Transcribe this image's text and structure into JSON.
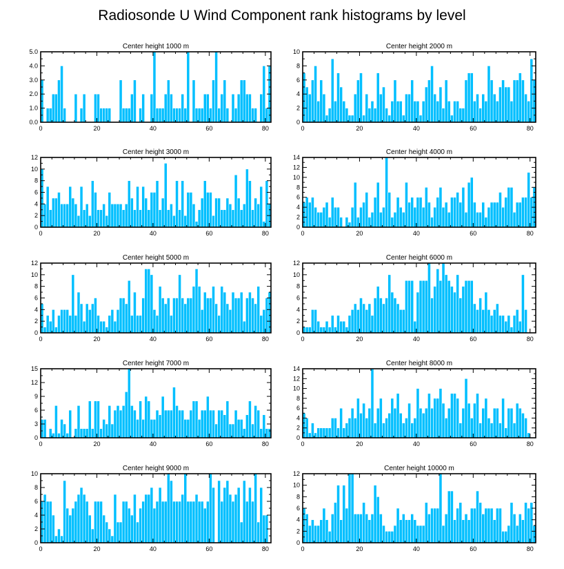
{
  "title": "Radiosonde U Wind Component rank histograms by level",
  "colors": {
    "bar": "#00bfff",
    "bar_edge": "#ffffff",
    "axis": "#000000",
    "background": "#ffffff"
  },
  "chart_data": [
    {
      "type": "bar",
      "title": "Center height 1000 m",
      "x_start": 0,
      "xlim": [
        0,
        82
      ],
      "ylim": [
        0,
        5
      ],
      "x_ticks": [
        0,
        20,
        40,
        60,
        80
      ],
      "x_tick_labels": [
        "0",
        "20",
        "40",
        "60",
        "80"
      ],
      "y_ticks": [
        0,
        1,
        2,
        3,
        4,
        5
      ],
      "y_tick_labels": [
        "0.0",
        "1.0",
        "2.0",
        "3.0",
        "4.0",
        "5.0"
      ],
      "values": [
        3,
        0,
        1,
        1,
        2,
        2,
        3,
        4,
        1,
        0,
        0,
        0,
        2,
        0,
        1,
        2,
        0,
        0,
        0,
        2,
        2,
        1,
        1,
        1,
        1,
        0,
        0,
        0,
        3,
        1,
        1,
        1,
        2,
        3,
        0,
        1,
        2,
        0,
        0,
        2,
        5,
        1,
        1,
        1,
        2,
        3,
        2,
        1,
        1,
        1,
        2,
        1,
        5,
        0,
        3,
        1,
        1,
        1,
        2,
        2,
        1,
        3,
        5,
        1,
        2,
        3,
        1,
        0,
        2,
        1,
        2,
        3,
        3,
        2,
        2,
        1,
        1,
        0,
        2,
        4,
        1,
        4,
        3
      ]
    },
    {
      "type": "bar",
      "title": "Center height 2000 m",
      "x_start": 0,
      "xlim": [
        0,
        82
      ],
      "ylim": [
        0,
        10
      ],
      "x_ticks": [
        0,
        20,
        40,
        60,
        80
      ],
      "x_tick_labels": [
        "0",
        "20",
        "40",
        "60",
        "80"
      ],
      "y_ticks": [
        0,
        2,
        4,
        6,
        8,
        10
      ],
      "y_tick_labels": [
        "0",
        "2",
        "4",
        "6",
        "8",
        "10"
      ],
      "values": [
        7,
        5,
        4,
        6,
        8,
        3,
        6,
        4,
        1,
        2,
        9,
        3,
        7,
        5,
        3,
        2,
        1,
        1,
        4,
        6,
        7,
        1,
        4,
        2,
        3,
        2,
        7,
        4,
        5,
        2,
        1,
        3,
        6,
        3,
        3,
        1,
        4,
        4,
        6,
        3,
        3,
        1,
        3,
        5,
        6,
        8,
        4,
        3,
        5,
        2,
        6,
        3,
        1,
        3,
        3,
        2,
        2,
        6,
        7,
        7,
        3,
        4,
        2,
        4,
        3,
        8,
        6,
        4,
        3,
        5,
        6,
        5,
        5,
        3,
        6,
        6,
        7,
        6,
        4,
        3,
        9,
        6
      ]
    },
    {
      "type": "bar",
      "title": "Center height 3000 m",
      "x_start": 0,
      "xlim": [
        0,
        82
      ],
      "ylim": [
        0,
        12
      ],
      "x_ticks": [
        0,
        20,
        40,
        60,
        80
      ],
      "x_tick_labels": [
        "0",
        "20",
        "40",
        "60",
        "80"
      ],
      "y_ticks": [
        0,
        2,
        4,
        6,
        8,
        10,
        12
      ],
      "y_tick_labels": [
        "0",
        "2",
        "4",
        "6",
        "8",
        "10",
        "12"
      ],
      "values": [
        10,
        4,
        7,
        3,
        5,
        5,
        6,
        4,
        4,
        4,
        7,
        5,
        4,
        2,
        7,
        3,
        4,
        2,
        8,
        6,
        3,
        3,
        4,
        2,
        6,
        4,
        4,
        4,
        4,
        3,
        4,
        8,
        5,
        3,
        7,
        3,
        7,
        5,
        3,
        6,
        6,
        8,
        3,
        5,
        11,
        3,
        4,
        2,
        8,
        3,
        8,
        2,
        6,
        6,
        4,
        1,
        3,
        5,
        8,
        6,
        6,
        2,
        5,
        5,
        3,
        3,
        5,
        4,
        3,
        9,
        5,
        3,
        4,
        10,
        8,
        3,
        5,
        4,
        7,
        1,
        8,
        4
      ]
    },
    {
      "type": "bar",
      "title": "Center height 4000 m",
      "x_start": 0,
      "xlim": [
        0,
        82
      ],
      "ylim": [
        0,
        14
      ],
      "x_ticks": [
        0,
        20,
        40,
        60,
        80
      ],
      "x_tick_labels": [
        "0",
        "20",
        "40",
        "60",
        "80"
      ],
      "y_ticks": [
        0,
        2,
        4,
        6,
        8,
        10,
        12,
        14
      ],
      "y_tick_labels": [
        "0",
        "2",
        "4",
        "6",
        "8",
        "10",
        "12",
        "14"
      ],
      "values": [
        5,
        6,
        5,
        6,
        4,
        3,
        3,
        4,
        5,
        2,
        6,
        4,
        4,
        2,
        0,
        2,
        1,
        4,
        9,
        2,
        4,
        5,
        7,
        2,
        3,
        6,
        9,
        3,
        4,
        14,
        7,
        2,
        3,
        6,
        4,
        3,
        9,
        5,
        6,
        4,
        6,
        6,
        4,
        8,
        5,
        2,
        4,
        6,
        8,
        4,
        5,
        3,
        6,
        6,
        7,
        5,
        8,
        3,
        9,
        10,
        5,
        3,
        3,
        5,
        2,
        4,
        5,
        5,
        5,
        7,
        4,
        6,
        8,
        8,
        3,
        5,
        5,
        6,
        6,
        11,
        6,
        8
      ]
    },
    {
      "type": "bar",
      "title": "Center height 5000 m",
      "x_start": 0,
      "xlim": [
        0,
        82
      ],
      "ylim": [
        0,
        12
      ],
      "x_ticks": [
        0,
        20,
        40,
        60,
        80
      ],
      "x_tick_labels": [
        "0",
        "20",
        "40",
        "60",
        "80"
      ],
      "y_ticks": [
        0,
        2,
        4,
        6,
        8,
        10,
        12
      ],
      "y_tick_labels": [
        "0",
        "2",
        "4",
        "6",
        "8",
        "10",
        "12"
      ],
      "values": [
        5,
        1,
        3,
        2,
        4,
        1,
        3,
        4,
        4,
        4,
        3,
        10,
        3,
        7,
        5,
        2,
        5,
        4,
        5,
        6,
        3,
        2,
        2,
        1,
        3,
        4,
        2,
        4,
        6,
        6,
        5,
        9,
        3,
        7,
        3,
        3,
        6,
        11,
        11,
        10,
        4,
        3,
        8,
        6,
        5,
        6,
        3,
        6,
        6,
        10,
        6,
        5,
        6,
        6,
        8,
        11,
        8,
        4,
        7,
        6,
        6,
        8,
        5,
        3,
        8,
        7,
        5,
        4,
        7,
        6,
        6,
        7,
        2,
        6,
        7,
        6,
        5,
        8,
        3,
        4,
        6,
        7
      ]
    },
    {
      "type": "bar",
      "title": "Center height 6000 m",
      "x_start": 0,
      "xlim": [
        0,
        82
      ],
      "ylim": [
        0,
        12
      ],
      "x_ticks": [
        0,
        20,
        40,
        60,
        80
      ],
      "x_tick_labels": [
        "0",
        "20",
        "40",
        "60",
        "80"
      ],
      "y_ticks": [
        0,
        2,
        4,
        6,
        8,
        10,
        12
      ],
      "y_tick_labels": [
        "0",
        "2",
        "4",
        "6",
        "8",
        "10",
        "12"
      ],
      "values": [
        1,
        1,
        1,
        4,
        4,
        2,
        1,
        1,
        2,
        1,
        3,
        1,
        3,
        2,
        2,
        1,
        3,
        4,
        5,
        4,
        6,
        5,
        4,
        5,
        3,
        6,
        8,
        6,
        5,
        6,
        10,
        7,
        6,
        5,
        4,
        4,
        9,
        9,
        9,
        2,
        7,
        9,
        9,
        9,
        12,
        6,
        8,
        11,
        9,
        12,
        10,
        9,
        8,
        7,
        10,
        6,
        8,
        9,
        9,
        9,
        5,
        4,
        6,
        4,
        7,
        4,
        3,
        4,
        5,
        3,
        3,
        2,
        3,
        1,
        3,
        4,
        2,
        10,
        4
      ]
    },
    {
      "type": "bar",
      "title": "Center height 7000 m",
      "x_start": 0,
      "xlim": [
        0,
        82
      ],
      "ylim": [
        0,
        15
      ],
      "x_ticks": [
        0,
        20,
        40,
        60,
        80
      ],
      "x_tick_labels": [
        "0",
        "20",
        "40",
        "60",
        "80"
      ],
      "y_ticks": [
        0,
        3,
        6,
        9,
        12,
        15
      ],
      "y_tick_labels": [
        "0",
        "3",
        "6",
        "9",
        "12",
        "15"
      ],
      "values": [
        4,
        4,
        0,
        2,
        1,
        7,
        1,
        4,
        3,
        1,
        6,
        0,
        2,
        7,
        2,
        2,
        2,
        8,
        2,
        8,
        8,
        2,
        4,
        3,
        7,
        3,
        6,
        7,
        6,
        7,
        10,
        15,
        7,
        6,
        4,
        8,
        4,
        9,
        8,
        4,
        4,
        6,
        5,
        9,
        6,
        6,
        6,
        11,
        7,
        6,
        6,
        4,
        4,
        6,
        8,
        8,
        4,
        6,
        6,
        9,
        6,
        6,
        3,
        6,
        6,
        5,
        8,
        3,
        3,
        6,
        4,
        4,
        2,
        5,
        8,
        3,
        7,
        6,
        2,
        5,
        2,
        2
      ]
    },
    {
      "type": "bar",
      "title": "Center height 8000 m",
      "x_start": 0,
      "xlim": [
        0,
        82
      ],
      "ylim": [
        0,
        14
      ],
      "x_ticks": [
        0,
        20,
        40,
        60,
        80
      ],
      "x_tick_labels": [
        "0",
        "20",
        "40",
        "60",
        "80"
      ],
      "y_ticks": [
        0,
        2,
        4,
        6,
        8,
        10,
        12,
        14
      ],
      "y_tick_labels": [
        "0",
        "2",
        "4",
        "6",
        "8",
        "10",
        "12",
        "14"
      ],
      "values": [
        5,
        4,
        1,
        3,
        1,
        2,
        2,
        2,
        2,
        2,
        4,
        4,
        2,
        6,
        2,
        3,
        4,
        6,
        4,
        8,
        5,
        7,
        4,
        6,
        14,
        3,
        6,
        8,
        3,
        4,
        5,
        8,
        6,
        9,
        5,
        3,
        4,
        7,
        3,
        4,
        10,
        6,
        5,
        6,
        9,
        6,
        8,
        8,
        10,
        7,
        4,
        6,
        9,
        9,
        8,
        3,
        6,
        12,
        7,
        4,
        7,
        9,
        3,
        6,
        8,
        4,
        3,
        6,
        6,
        3,
        8,
        2,
        6,
        6,
        3,
        7,
        6,
        5,
        4,
        1
      ]
    },
    {
      "type": "bar",
      "title": "Center height 9000 m",
      "x_start": 0,
      "xlim": [
        0,
        82
      ],
      "ylim": [
        0,
        10
      ],
      "x_ticks": [
        0,
        20,
        40,
        60,
        80
      ],
      "x_tick_labels": [
        "0",
        "20",
        "40",
        "60",
        "80"
      ],
      "y_ticks": [
        0,
        2,
        4,
        6,
        8,
        10
      ],
      "y_tick_labels": [
        "0",
        "2",
        "4",
        "6",
        "8",
        "10"
      ],
      "values": [
        6,
        7,
        6,
        6,
        4,
        1,
        2,
        1,
        9,
        5,
        4,
        5,
        6,
        7,
        8,
        7,
        6,
        4,
        2,
        6,
        6,
        6,
        4,
        3,
        2,
        1,
        7,
        3,
        3,
        6,
        6,
        5,
        4,
        7,
        3,
        5,
        6,
        7,
        7,
        8,
        5,
        6,
        8,
        6,
        6,
        10,
        9,
        6,
        6,
        6,
        7,
        10,
        6,
        6,
        6,
        7,
        6,
        6,
        5,
        6,
        10,
        8,
        0,
        9,
        6,
        8,
        9,
        7,
        6,
        7,
        8,
        3,
        9,
        6,
        8,
        6,
        10,
        3,
        8,
        4,
        4
      ]
    },
    {
      "type": "bar",
      "title": "Center height 10000 m",
      "x_start": 0,
      "xlim": [
        0,
        82
      ],
      "ylim": [
        0,
        12
      ],
      "x_ticks": [
        0,
        20,
        40,
        60,
        80
      ],
      "x_tick_labels": [
        "0",
        "20",
        "40",
        "60",
        "80"
      ],
      "y_ticks": [
        0,
        2,
        4,
        6,
        8,
        10,
        12
      ],
      "y_tick_labels": [
        "0",
        "2",
        "4",
        "6",
        "8",
        "10",
        "12"
      ],
      "values": [
        6,
        5,
        3,
        4,
        3,
        3,
        4,
        6,
        4,
        2,
        5,
        7,
        10,
        4,
        10,
        6,
        12,
        12,
        5,
        5,
        5,
        7,
        5,
        4,
        5,
        10,
        8,
        5,
        3,
        2,
        2,
        2,
        3,
        6,
        4,
        5,
        4,
        4,
        5,
        4,
        3,
        3,
        3,
        7,
        5,
        6,
        6,
        6,
        12,
        3,
        5,
        9,
        9,
        4,
        6,
        7,
        4,
        5,
        4,
        6,
        6,
        9,
        7,
        5,
        6,
        6,
        6,
        4,
        6,
        6,
        2,
        2,
        3,
        7,
        5,
        3,
        5,
        4,
        7,
        6,
        7,
        3,
        3
      ]
    }
  ]
}
